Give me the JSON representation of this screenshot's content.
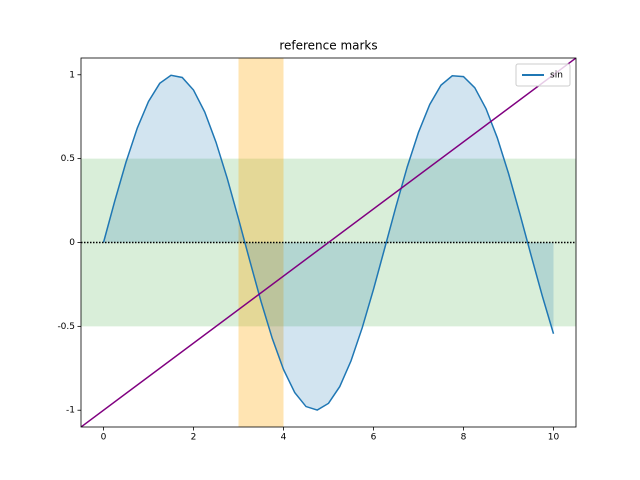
{
  "chart_data": {
    "type": "line",
    "title": "reference marks",
    "x": [
      0,
      0.25,
      0.5,
      0.75,
      1,
      1.25,
      1.5,
      1.75,
      2,
      2.25,
      2.5,
      2.75,
      3,
      3.25,
      3.5,
      3.75,
      4,
      4.25,
      4.5,
      4.75,
      5,
      5.25,
      5.5,
      5.75,
      6,
      6.25,
      6.5,
      6.75,
      7,
      7.25,
      7.5,
      7.75,
      8,
      8.25,
      8.5,
      8.75,
      9,
      9.25,
      9.5,
      9.75,
      10
    ],
    "series": [
      {
        "name": "sin",
        "color": "#1f77b4",
        "fill": true,
        "values": [
          0,
          0.247,
          0.479,
          0.682,
          0.841,
          0.949,
          0.997,
          0.984,
          0.909,
          0.778,
          0.598,
          0.382,
          0.141,
          -0.108,
          -0.351,
          -0.572,
          -0.757,
          -0.895,
          -0.978,
          -0.999,
          -0.959,
          -0.859,
          -0.706,
          -0.508,
          -0.279,
          -0.033,
          0.215,
          0.451,
          0.657,
          0.823,
          0.938,
          0.994,
          0.989,
          0.923,
          0.798,
          0.625,
          0.412,
          0.173,
          -0.075,
          -0.318,
          -0.544
        ]
      }
    ],
    "hspan": {
      "range": [
        -0.5,
        0.5
      ],
      "color": "#2ca02c"
    },
    "vspan": {
      "range": [
        3,
        4
      ],
      "color": "#ffa500"
    },
    "hline": {
      "value": 0,
      "color": "#000000"
    },
    "axline": {
      "x": [
        0,
        5
      ],
      "y": [
        -1,
        0
      ],
      "color": "#800080"
    },
    "xlim": [
      -0.5,
      10.5
    ],
    "ylim": [
      -1.1,
      1.1
    ],
    "xticks": [
      0,
      2,
      4,
      6,
      8,
      10
    ],
    "yticks": [
      -1,
      -0.5,
      0,
      0.5,
      1
    ],
    "legend": "upper right"
  }
}
